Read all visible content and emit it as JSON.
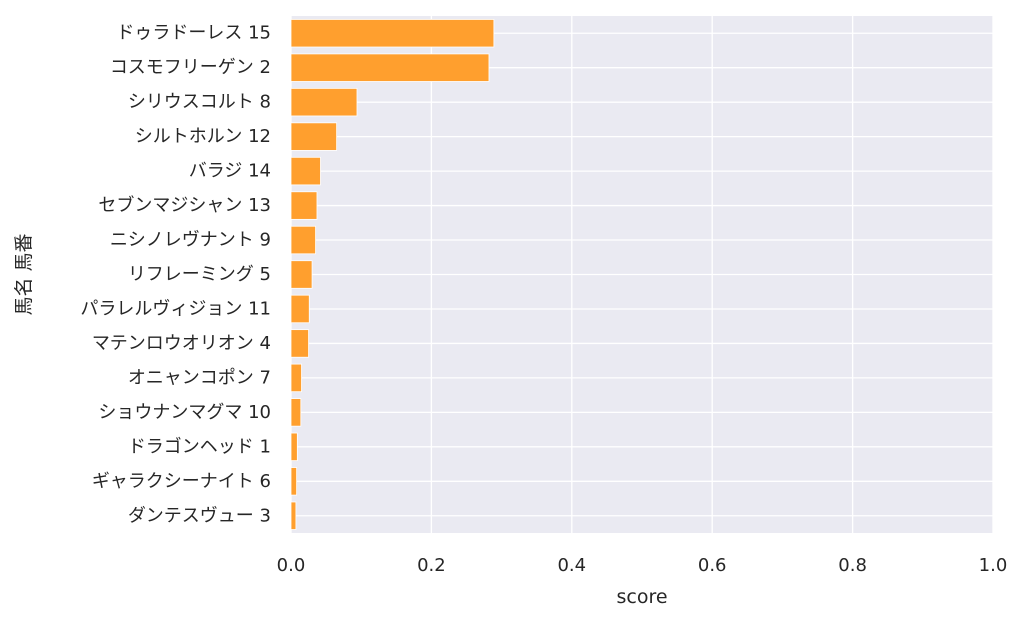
{
  "chart_data": {
    "type": "bar",
    "orientation": "horizontal",
    "categories": [
      "ドゥラドーレス 15",
      "コスモフリーゲン 2",
      "シリウスコルト 8",
      "シルトホルン 12",
      "バラジ 14",
      "セブンマジシャン 13",
      "ニシノレヴナント 9",
      "リフレーミング 5",
      "パラレルヴィジョン 11",
      "マテンロウオリオン 4",
      "オニャンコポン 7",
      "ショウナンマグマ 10",
      "ドラゴンヘッド 1",
      "ギャラクシーナイト 6",
      "ダンテスヴュー 3"
    ],
    "values": [
      0.289,
      0.282,
      0.094,
      0.065,
      0.042,
      0.037,
      0.035,
      0.03,
      0.026,
      0.025,
      0.015,
      0.014,
      0.009,
      0.008,
      0.007
    ],
    "xlabel": "score",
    "ylabel": "馬名 馬番",
    "xlim": [
      0,
      1.0
    ],
    "x_ticks": [
      "0.0",
      "0.2",
      "0.4",
      "0.6",
      "0.8",
      "1.0"
    ],
    "x_tick_values": [
      0,
      0.2,
      0.4,
      0.6,
      0.8,
      1.0
    ],
    "grid": true,
    "colors": {
      "bar": "#ff9f2e",
      "background": "#eaeaf2",
      "grid": "#ffffff"
    }
  }
}
